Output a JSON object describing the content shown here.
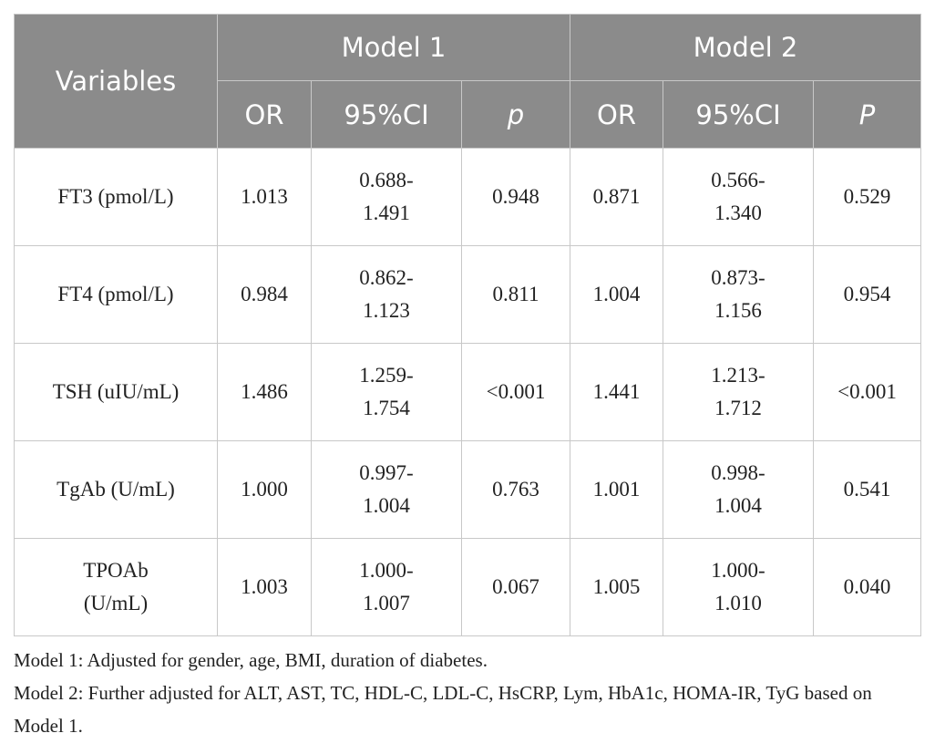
{
  "header": {
    "variables": "Variables",
    "groups": [
      "Model 1",
      "Model 2"
    ],
    "subheaders": [
      "OR",
      "95%CI",
      "p",
      "OR",
      "95%CI",
      "P"
    ]
  },
  "table": {
    "rows": [
      [
        "FT3 (pmol/L)",
        "1.013",
        "0.688-\n1.491",
        "0.948",
        "0.871",
        "0.566-\n1.340",
        "0.529"
      ],
      [
        "FT4 (pmol/L)",
        "0.984",
        "0.862-\n1.123",
        "0.811",
        "1.004",
        "0.873-\n1.156",
        "0.954"
      ],
      [
        "TSH (uIU/mL)",
        "1.486",
        "1.259-\n1.754",
        "<0.001",
        "1.441",
        "1.213-\n1.712",
        "<0.001"
      ],
      [
        "TgAb (U/mL)",
        "1.000",
        "0.997-\n1.004",
        "0.763",
        "1.001",
        "0.998-\n1.004",
        "0.541"
      ],
      [
        "TPOAb\n(U/mL)",
        "1.003",
        "1.000-\n1.007",
        "0.067",
        "1.005",
        "1.000-\n1.010",
        "0.040"
      ]
    ]
  },
  "footnotes": [
    "Model 1: Adjusted for gender, age, BMI, duration of diabetes.",
    "Model 2: Further adjusted for ALT, AST, TC, HDL-C, LDL-C, HsCRP, Lym, HbA1c, HOMA-IR, TyG based on Model 1."
  ]
}
